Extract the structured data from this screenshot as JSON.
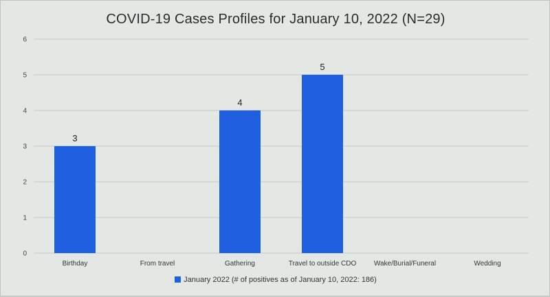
{
  "chart_data": {
    "type": "bar",
    "title": "COVID-19 Cases Profiles for January 10, 2022 (N=29)",
    "categories": [
      "Birthday",
      "From travel",
      "Gathering",
      "Travel to outside CDO",
      "Wake/Burial/Funeral",
      "Wedding"
    ],
    "series": [
      {
        "name": "January 2022 (# of positives as of January 10, 2022: 186)",
        "values": [
          3,
          0,
          4,
          5,
          0,
          0
        ],
        "data_labels": [
          "3",
          "",
          "4",
          "5",
          "",
          ""
        ]
      }
    ],
    "ylim": [
      0,
      6
    ],
    "yticks": [
      0,
      1,
      2,
      3,
      4,
      5,
      6
    ],
    "grid": true,
    "legend_position": "bottom",
    "bar_color": "#1f5fe0",
    "grid_color": "#c4cac6"
  }
}
